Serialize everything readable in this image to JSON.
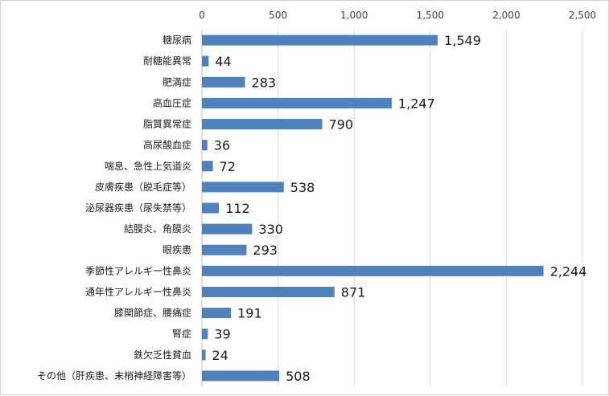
{
  "chart_data": {
    "type": "bar",
    "orientation": "horizontal",
    "title": "",
    "xlabel": "",
    "ylabel": "",
    "xlim": [
      0,
      2500
    ],
    "x_ticks": [
      0,
      500,
      1000,
      1500,
      2000,
      2500
    ],
    "x_tick_labels": [
      "0",
      "500",
      "1,000",
      "1,500",
      "2,000",
      "2,500"
    ],
    "x_axis_position": "top",
    "grid": true,
    "legend": "none",
    "bar_color": "#4f81bd",
    "categories": [
      "糖尿病",
      "耐糖能異常",
      "肥満症",
      "高血圧症",
      "脂質異常症",
      "高尿酸血症",
      "喘息、急性上気道炎",
      "皮膚疾患（脱毛症等）",
      "泌尿器疾患（尿失禁等）",
      "結膜炎、角膜炎",
      "眼疾患",
      "季節性アレルギー性鼻炎",
      "通年性アレルギー性鼻炎",
      "膝関節症、腰痛症",
      "腎症",
      "鉄欠乏性貧血",
      "その他（肝疾患、末梢神経障害等）"
    ],
    "values": [
      1549,
      44,
      283,
      1247,
      790,
      36,
      72,
      538,
      112,
      330,
      293,
      2244,
      871,
      191,
      39,
      24,
      508
    ],
    "value_labels": [
      "1,549",
      "44",
      "283",
      "1,247",
      "790",
      "36",
      "72",
      "538",
      "112",
      "330",
      "293",
      "2,244",
      "871",
      "191",
      "39",
      "24",
      "508"
    ]
  }
}
